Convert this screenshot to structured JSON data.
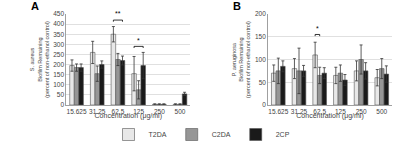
{
  "chart_data": [
    {
      "type": "bar",
      "title": "A",
      "xlabel": "Concentration (μg/ml)",
      "ylabel": "S. aureus\nBiofilm Remaining\n(percent of non-ethanol control)",
      "categories": [
        "15.625",
        "31.25",
        "62.5",
        "125",
        "250",
        "500"
      ],
      "series": [
        {
          "name": "T2DA",
          "color": "#e8e8e8",
          "values": [
            195,
            260,
            350,
            155,
            3,
            3
          ],
          "errors": [
            28,
            55,
            38,
            85,
            3,
            3
          ]
        },
        {
          "name": "C2DA",
          "color": "#969696",
          "values": [
            185,
            155,
            225,
            75,
            3,
            3
          ],
          "errors": [
            18,
            38,
            30,
            45,
            3,
            3
          ]
        },
        {
          "name": "2CP",
          "color": "#1a1a1a",
          "values": [
            185,
            200,
            220,
            195,
            3,
            55
          ],
          "errors": [
            18,
            18,
            22,
            65,
            3,
            8
          ]
        }
      ],
      "ylim": [
        0,
        450
      ],
      "yticks": [
        0,
        50,
        100,
        150,
        200,
        250,
        300,
        350,
        400,
        450
      ],
      "grid": true,
      "legend": "bottom",
      "annotations": [
        {
          "text": "**",
          "category": "62.5",
          "between": [
            "T2DA",
            "2CP"
          ],
          "y": 420
        },
        {
          "text": "*",
          "category": "125",
          "between": [
            "T2DA",
            "2CP"
          ],
          "y": 290
        }
      ]
    },
    {
      "type": "bar",
      "title": "B",
      "xlabel": "Concentration (μg/ml)",
      "ylabel": "P. aeruginosa\nBiofilm Remaining\n(percent of non-ethanol control)",
      "categories": [
        "15.625",
        "31.25",
        "62.5",
        "125",
        "250",
        "500"
      ],
      "series": [
        {
          "name": "T2DA",
          "color": "#e8e8e8",
          "values": [
            70,
            80,
            110,
            65,
            75,
            60
          ],
          "errors": [
            18,
            22,
            28,
            18,
            22,
            18
          ]
        },
        {
          "name": "C2DA",
          "color": "#969696",
          "values": [
            75,
            75,
            65,
            70,
            100,
            80
          ],
          "errors": [
            28,
            50,
            18,
            18,
            32,
            22
          ]
        },
        {
          "name": "2CP",
          "color": "#1a1a1a",
          "values": [
            85,
            75,
            70,
            55,
            75,
            68
          ],
          "errors": [
            12,
            12,
            12,
            12,
            18,
            18
          ]
        }
      ],
      "ylim": [
        0,
        200
      ],
      "yticks": [
        0,
        50,
        100,
        150,
        200
      ],
      "grid": true,
      "annotations": [
        {
          "text": "*",
          "category": "62.5",
          "between": [
            "T2DA",
            "C2DA"
          ],
          "y": 155
        }
      ]
    }
  ]
}
